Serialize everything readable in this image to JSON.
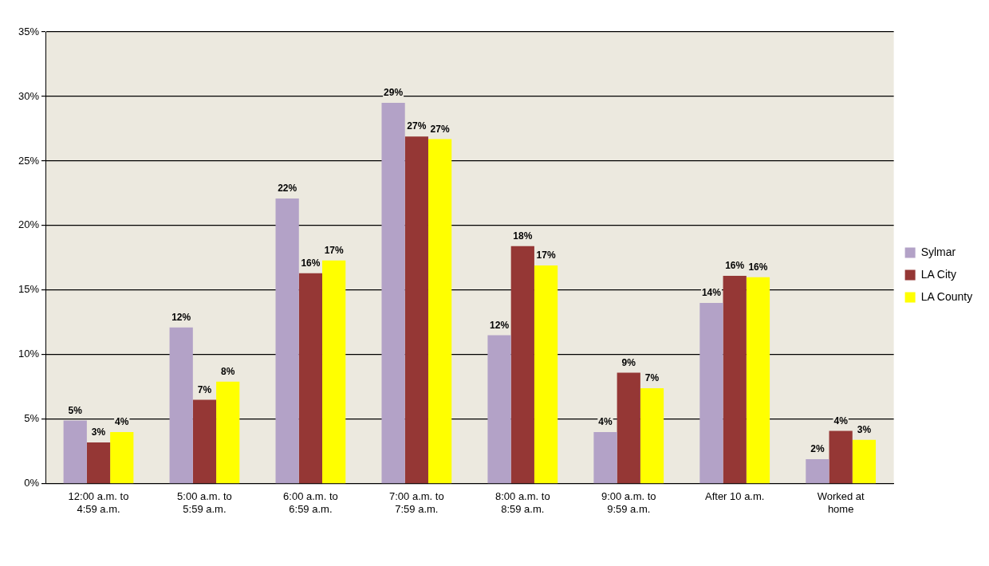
{
  "chart_data": {
    "type": "bar",
    "categories": [
      "12:00 a.m. to\n4:59 a.m.",
      "5:00 a.m. to\n5:59 a.m.",
      "6:00 a.m. to\n6:59 a.m.",
      "7:00 a.m. to\n7:59 a.m.",
      "8:00 a.m. to\n8:59 a.m.",
      "9:00 a.m. to\n9:59 a.m.",
      "After 10 a.m.",
      "Worked at\nhome"
    ],
    "series": [
      {
        "name": "Sylmar",
        "color": "#b3a2c7",
        "values": [
          4.9,
          12.1,
          22.1,
          29.5,
          11.5,
          4.0,
          14.0,
          1.9
        ],
        "value_labels": [
          "5%",
          "12%",
          "22%",
          "29%",
          "12%",
          "4%",
          "14%",
          "2%"
        ]
      },
      {
        "name": "LA City",
        "color": "#953735",
        "values": [
          3.2,
          6.5,
          16.3,
          26.9,
          18.4,
          8.6,
          16.1,
          4.1
        ],
        "value_labels": [
          "3%",
          "7%",
          "16%",
          "27%",
          "18%",
          "9%",
          "16%",
          "4%"
        ]
      },
      {
        "name": "LA County",
        "color": "#ffff00",
        "values": [
          4.0,
          7.9,
          17.3,
          26.7,
          16.9,
          7.4,
          16.0,
          3.4
        ],
        "value_labels": [
          "4%",
          "8%",
          "17%",
          "27%",
          "17%",
          "7%",
          "16%",
          "3%"
        ]
      }
    ],
    "ylim": [
      0,
      35
    ],
    "yticks": [
      {
        "value": 0,
        "label": "0%"
      },
      {
        "value": 5,
        "label": "5%"
      },
      {
        "value": 10,
        "label": "10%"
      },
      {
        "value": 15,
        "label": "15%"
      },
      {
        "value": 20,
        "label": "20%"
      },
      {
        "value": 25,
        "label": "25%"
      },
      {
        "value": 30,
        "label": "30%"
      },
      {
        "value": 35,
        "label": "35%"
      }
    ],
    "grid": "y",
    "legend": "right"
  }
}
